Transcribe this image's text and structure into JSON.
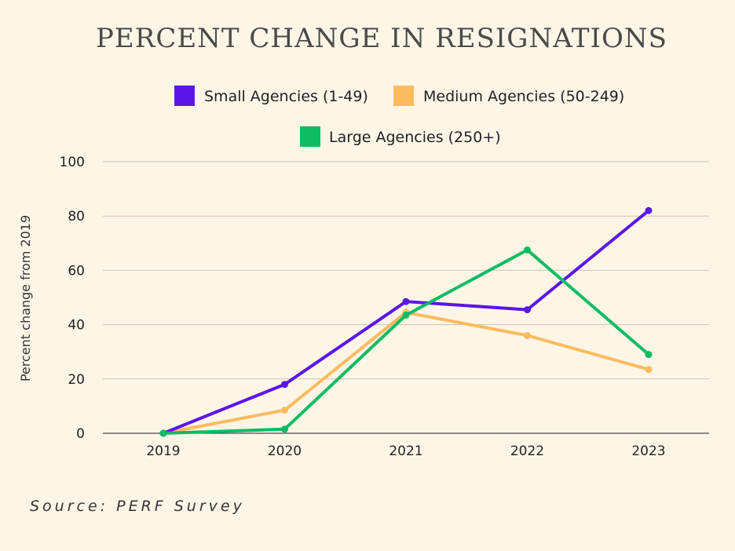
{
  "chart_data": {
    "type": "line",
    "title": "PERCENT CHANGE IN RESIGNATIONS",
    "ylabel": "Percent change from 2019",
    "xlabel": "",
    "categories": [
      "2019",
      "2020",
      "2021",
      "2022",
      "2023"
    ],
    "ylim": [
      0,
      100
    ],
    "yticks": [
      0,
      20,
      40,
      60,
      80,
      100
    ],
    "grid": true,
    "legend_position": "top",
    "series": [
      {
        "name": "Small Agencies (1-49)",
        "color": "#5b16e8",
        "values": [
          0,
          18,
          48.5,
          45.5,
          82
        ]
      },
      {
        "name": "Medium Agencies (50-249)",
        "color": "#fdbb5f",
        "values": [
          0,
          8.5,
          44.5,
          36,
          23.5
        ]
      },
      {
        "name": "Large Agencies (250+)",
        "color": "#0dbb63",
        "values": [
          0,
          1.5,
          43.5,
          67.5,
          29
        ]
      }
    ]
  },
  "source": "Source: PERF Survey"
}
